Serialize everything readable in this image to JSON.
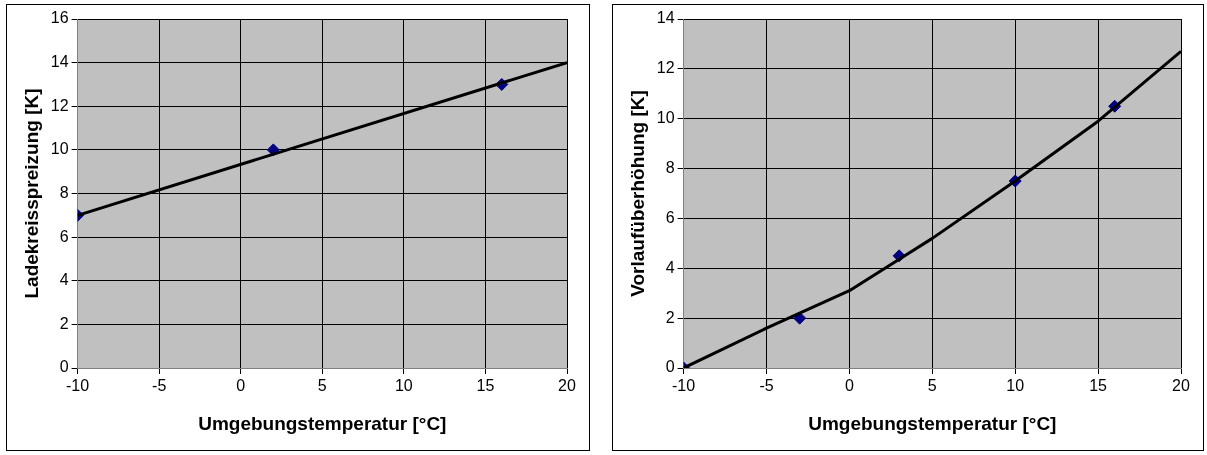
{
  "chart_data": [
    {
      "type": "scatter",
      "xlabel": "Umgebungstemperatur [°C]",
      "ylabel": "Ladekreisspreizung [K]",
      "xlim": [
        -10,
        20
      ],
      "xticks": [
        -10,
        -5,
        0,
        5,
        10,
        15,
        20
      ],
      "ylim": [
        0,
        16
      ],
      "yticks": [
        0,
        2,
        4,
        6,
        8,
        10,
        12,
        14,
        16
      ],
      "grid": true,
      "series": [
        {
          "type": "line",
          "color": "#000000",
          "marker": "none",
          "x": [
            -10,
            20
          ],
          "values": [
            7,
            14
          ]
        },
        {
          "type": "scatter",
          "color": "#000080",
          "marker": "diamond",
          "x": [
            -10,
            2,
            16
          ],
          "values": [
            7,
            10,
            13
          ]
        }
      ]
    },
    {
      "type": "scatter",
      "xlabel": "Umgebungstemperatur [°C]",
      "ylabel": "Vorlaufüberhöhung [K]",
      "xlim": [
        -10,
        20
      ],
      "xticks": [
        -10,
        -5,
        0,
        5,
        10,
        15,
        20
      ],
      "ylim": [
        0,
        14
      ],
      "yticks": [
        0,
        2,
        4,
        6,
        8,
        10,
        12,
        14
      ],
      "grid": true,
      "series": [
        {
          "type": "line",
          "color": "#000000",
          "marker": "none",
          "x": [
            -10,
            -5,
            0,
            5,
            10,
            15,
            20
          ],
          "values": [
            0,
            1.6,
            3.1,
            5.2,
            7.5,
            9.9,
            12.7
          ]
        },
        {
          "type": "scatter",
          "color": "#000080",
          "marker": "diamond",
          "x": [
            -10,
            -3,
            3,
            10,
            16
          ],
          "values": [
            0,
            2,
            4.5,
            7.5,
            10.5
          ]
        }
      ]
    }
  ]
}
